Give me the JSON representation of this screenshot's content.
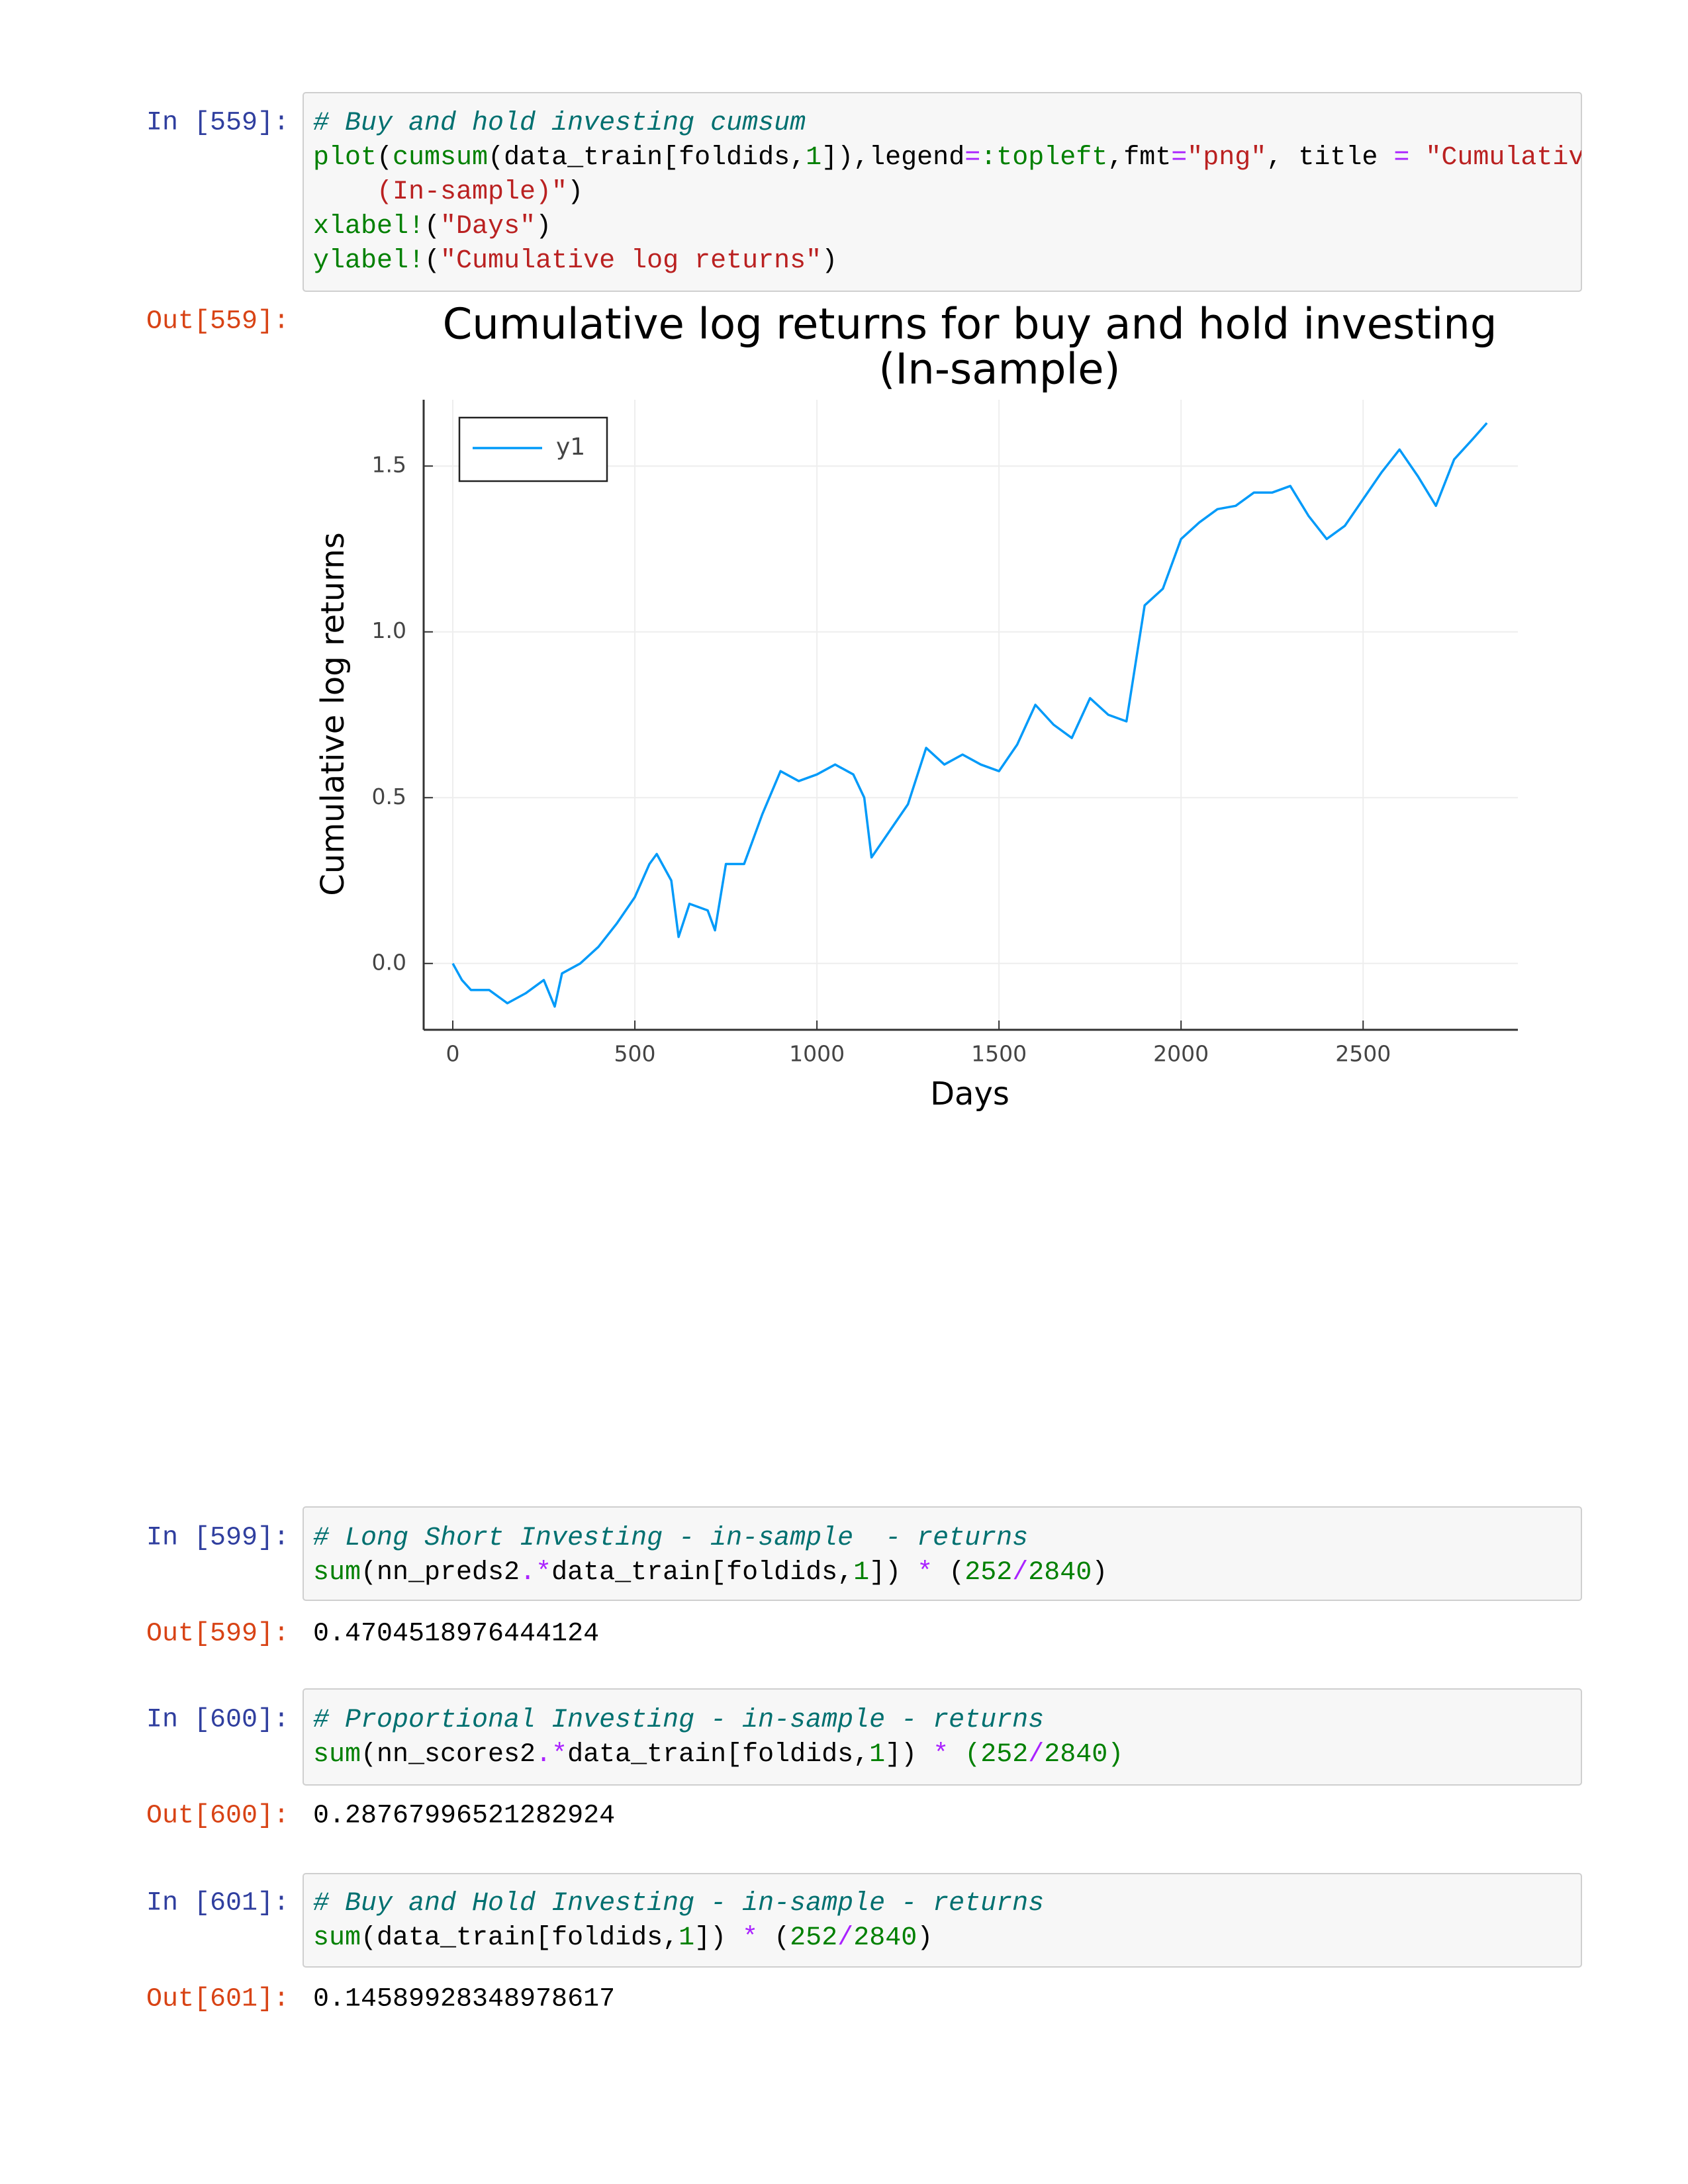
{
  "cells": [
    {
      "prompt_in": "In [559]:",
      "code": [
        [
          {
            "text": "# Buy and hold investing cumsum",
            "color": "#007070",
            "italic": true
          }
        ],
        [
          {
            "text": "plot",
            "color": "#008000"
          },
          {
            "text": "("
          },
          {
            "text": "cumsum",
            "color": "#008000"
          },
          {
            "text": "(data_train[foldids,"
          },
          {
            "text": "1",
            "color": "#008000"
          },
          {
            "text": "]),legend"
          },
          {
            "text": "=",
            "color": "#aa22ff"
          },
          {
            "text": ":topleft",
            "color": "#008000"
          },
          {
            "text": ",fmt"
          },
          {
            "text": "=",
            "color": "#aa22ff"
          },
          {
            "text": "\"png\"",
            "color": "#ba2121"
          },
          {
            "text": ", title "
          },
          {
            "text": "=",
            "color": "#aa22ff"
          },
          {
            "text": " \"Cumulative",
            "color": "#ba2121"
          }
        ],
        [
          {
            "text": "    (In-sample)\"",
            "color": "#ba2121"
          },
          {
            "text": ")"
          }
        ],
        [
          {
            "text": "xlabel!",
            "color": "#008000"
          },
          {
            "text": "("
          },
          {
            "text": "\"Days\"",
            "color": "#ba2121"
          },
          {
            "text": ")"
          }
        ],
        [
          {
            "text": "ylabel!",
            "color": "#008000"
          },
          {
            "text": "("
          },
          {
            "text": "\"Cumulative log returns\"",
            "color": "#ba2121"
          },
          {
            "text": ")"
          }
        ]
      ],
      "prompt_out": "Out[559]:"
    },
    {
      "prompt_in": "In [599]:",
      "code": [
        [
          {
            "text": "# Long Short Investing - in-sample  - returns",
            "color": "#007070",
            "italic": true
          }
        ],
        [
          {
            "text": "sum",
            "color": "#008000"
          },
          {
            "text": "(nn_preds2"
          },
          {
            "text": ".*",
            "color": "#aa22ff"
          },
          {
            "text": "data_train[foldids,"
          },
          {
            "text": "1",
            "color": "#008000"
          },
          {
            "text": "]) "
          },
          {
            "text": "*",
            "color": "#aa22ff"
          },
          {
            "text": " ("
          },
          {
            "text": "252",
            "color": "#008000"
          },
          {
            "text": "/",
            "color": "#aa22ff"
          },
          {
            "text": "2840",
            "color": "#008000"
          },
          {
            "text": ")"
          }
        ]
      ],
      "prompt_out": "Out[599]:",
      "output": "0.4704518976444124"
    },
    {
      "prompt_in": "In [600]:",
      "code": [
        [
          {
            "text": "# Proportional Investing - in-sample - returns",
            "color": "#007070",
            "italic": true
          }
        ],
        [
          {
            "text": "sum",
            "color": "#008000"
          },
          {
            "text": "(nn_scores2"
          },
          {
            "text": ".*",
            "color": "#aa22ff"
          },
          {
            "text": "data_train[foldids,"
          },
          {
            "text": "1",
            "color": "#008000"
          },
          {
            "text": "]) "
          },
          {
            "text": "*",
            "color": "#aa22ff"
          },
          {
            "text": " (252",
            "color": "#008000"
          },
          {
            "text": "/",
            "color": "#aa22ff"
          },
          {
            "text": "2840)",
            "color": "#008000"
          }
        ]
      ],
      "prompt_out": "Out[600]:",
      "output": "0.28767996521282924"
    },
    {
      "prompt_in": "In [601]:",
      "code": [
        [
          {
            "text": "# Buy and Hold Investing - in-sample - returns",
            "color": "#007070",
            "italic": true
          }
        ],
        [
          {
            "text": "sum",
            "color": "#008000"
          },
          {
            "text": "(data_train[foldids,"
          },
          {
            "text": "1",
            "color": "#008000"
          },
          {
            "text": "]) "
          },
          {
            "text": "*",
            "color": "#aa22ff"
          },
          {
            "text": " ("
          },
          {
            "text": "252",
            "color": "#008000"
          },
          {
            "text": "/",
            "color": "#aa22ff"
          },
          {
            "text": "2840",
            "color": "#008000"
          },
          {
            "text": ")"
          }
        ]
      ],
      "prompt_out": "Out[601]:",
      "output": "0.14589928348978617"
    }
  ],
  "chart_data": {
    "type": "line",
    "title": [
      "Cumulative log returns for buy and hold investing",
      "(In-sample)"
    ],
    "x_label": "Days",
    "y_label": "Cumulative log returns",
    "x": [
      0,
      25,
      50,
      100,
      150,
      200,
      250,
      280,
      300,
      350,
      400,
      450,
      500,
      540,
      560,
      600,
      620,
      650,
      700,
      720,
      750,
      800,
      850,
      900,
      950,
      1000,
      1050,
      1100,
      1130,
      1150,
      1200,
      1250,
      1300,
      1350,
      1400,
      1450,
      1500,
      1550,
      1600,
      1650,
      1700,
      1750,
      1800,
      1850,
      1900,
      1950,
      2000,
      2050,
      2100,
      2150,
      2200,
      2250,
      2300,
      2350,
      2400,
      2450,
      2500,
      2550,
      2600,
      2650,
      2700,
      2750,
      2800,
      2840
    ],
    "series": [
      {
        "name": "y1",
        "color": "#009af9",
        "values": [
          0.0,
          -0.05,
          -0.08,
          -0.08,
          -0.12,
          -0.09,
          -0.05,
          -0.13,
          -0.03,
          0.0,
          0.05,
          0.12,
          0.2,
          0.3,
          0.33,
          0.25,
          0.08,
          0.18,
          0.16,
          0.1,
          0.3,
          0.3,
          0.45,
          0.58,
          0.55,
          0.57,
          0.6,
          0.57,
          0.5,
          0.32,
          0.4,
          0.48,
          0.65,
          0.6,
          0.63,
          0.6,
          0.58,
          0.66,
          0.78,
          0.72,
          0.68,
          0.8,
          0.75,
          0.73,
          1.08,
          1.13,
          1.28,
          1.33,
          1.37,
          1.38,
          1.42,
          1.42,
          1.44,
          1.35,
          1.28,
          1.32,
          1.4,
          1.48,
          1.55,
          1.47,
          1.38,
          1.52,
          1.58,
          1.63
        ]
      }
    ],
    "xlim": [
      -80,
      2925
    ],
    "ylim": [
      -0.2,
      1.7
    ],
    "xticks": [
      0,
      500,
      1000,
      1500,
      2000,
      2500
    ],
    "yticks": [
      {
        "value": 0,
        "label": "0.0"
      },
      {
        "value": 0.5,
        "label": "0.5"
      },
      {
        "value": 1,
        "label": "1.0"
      },
      {
        "value": 1.5,
        "label": "1.5"
      }
    ],
    "grid": true,
    "legend": "topleft"
  }
}
